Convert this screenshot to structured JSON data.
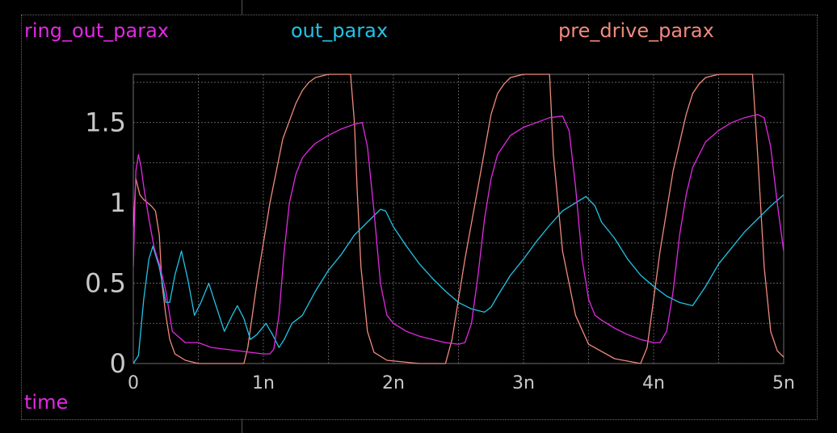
{
  "colors": {
    "background": "#000000",
    "grid": "#6e6e6e",
    "axis_text": "#c8c8c8",
    "ring_out_parax": "#e229e2",
    "out_parax": "#22c3e6",
    "pre_drive_parax": "#f08a7d"
  },
  "chart_data": {
    "type": "line",
    "title": "",
    "xlabel": "time",
    "ylabel": "",
    "xlim": [
      0,
      5
    ],
    "ylim": [
      0,
      1.8
    ],
    "grid": true,
    "legend_placement": "top",
    "x_ticks": [
      0,
      1,
      2,
      3,
      4,
      5
    ],
    "x_tick_labels": [
      "0",
      "1n",
      "2n",
      "3n",
      "4n",
      "5n"
    ],
    "y_ticks": [
      0,
      0.5,
      1,
      1.5
    ],
    "y_tick_labels": [
      "0",
      "0.5",
      "1",
      "1.5"
    ],
    "series": [
      {
        "name": "ring_out_parax",
        "color": "#e229e2",
        "x": [
          0,
          0.02,
          0.04,
          0.06,
          0.08,
          0.12,
          0.16,
          0.2,
          0.25,
          0.3,
          0.4,
          0.5,
          0.6,
          0.7,
          0.8,
          0.9,
          1.0,
          1.05,
          1.08,
          1.12,
          1.16,
          1.2,
          1.25,
          1.3,
          1.35,
          1.4,
          1.5,
          1.6,
          1.7,
          1.76,
          1.8,
          1.85,
          1.9,
          1.95,
          2.0,
          2.1,
          2.2,
          2.3,
          2.4,
          2.5,
          2.55,
          2.6,
          2.65,
          2.7,
          2.75,
          2.8,
          2.9,
          3.0,
          3.1,
          3.2,
          3.3,
          3.35,
          3.4,
          3.45,
          3.5,
          3.55,
          3.6,
          3.7,
          3.8,
          3.9,
          4.0,
          4.05,
          4.1,
          4.15,
          4.2,
          4.25,
          4.3,
          4.4,
          4.5,
          4.6,
          4.7,
          4.8,
          4.85,
          4.9,
          4.95,
          5.0
        ],
        "y": [
          0.6,
          1.2,
          1.3,
          1.22,
          1.1,
          0.9,
          0.72,
          0.62,
          0.45,
          0.2,
          0.13,
          0.13,
          0.1,
          0.09,
          0.08,
          0.07,
          0.06,
          0.06,
          0.09,
          0.3,
          0.7,
          1.0,
          1.18,
          1.28,
          1.33,
          1.37,
          1.42,
          1.46,
          1.49,
          1.5,
          1.35,
          0.95,
          0.5,
          0.3,
          0.25,
          0.2,
          0.17,
          0.15,
          0.13,
          0.12,
          0.13,
          0.25,
          0.55,
          0.9,
          1.15,
          1.3,
          1.42,
          1.47,
          1.5,
          1.53,
          1.54,
          1.45,
          1.1,
          0.65,
          0.4,
          0.3,
          0.27,
          0.22,
          0.18,
          0.15,
          0.13,
          0.13,
          0.2,
          0.45,
          0.8,
          1.05,
          1.22,
          1.38,
          1.45,
          1.5,
          1.53,
          1.55,
          1.53,
          1.35,
          1.0,
          0.7
        ]
      },
      {
        "name": "out_parax",
        "color": "#22c3e6",
        "x": [
          0,
          0.04,
          0.08,
          0.12,
          0.15,
          0.2,
          0.25,
          0.28,
          0.32,
          0.37,
          0.42,
          0.47,
          0.52,
          0.58,
          0.64,
          0.7,
          0.76,
          0.8,
          0.85,
          0.9,
          0.95,
          1.02,
          1.07,
          1.12,
          1.16,
          1.22,
          1.3,
          1.4,
          1.5,
          1.6,
          1.7,
          1.8,
          1.9,
          1.94,
          2.0,
          2.1,
          2.2,
          2.3,
          2.4,
          2.5,
          2.6,
          2.7,
          2.75,
          2.8,
          2.9,
          3.0,
          3.1,
          3.2,
          3.3,
          3.4,
          3.48,
          3.55,
          3.6,
          3.7,
          3.8,
          3.9,
          4.0,
          4.1,
          4.2,
          4.3,
          4.4,
          4.5,
          4.6,
          4.7,
          4.8,
          4.9,
          5.0
        ],
        "y": [
          0.0,
          0.05,
          0.4,
          0.65,
          0.73,
          0.6,
          0.38,
          0.38,
          0.55,
          0.7,
          0.52,
          0.3,
          0.38,
          0.5,
          0.35,
          0.2,
          0.3,
          0.36,
          0.28,
          0.15,
          0.18,
          0.25,
          0.18,
          0.1,
          0.15,
          0.25,
          0.3,
          0.45,
          0.58,
          0.68,
          0.8,
          0.88,
          0.96,
          0.95,
          0.85,
          0.73,
          0.62,
          0.53,
          0.45,
          0.38,
          0.34,
          0.32,
          0.35,
          0.42,
          0.55,
          0.65,
          0.76,
          0.86,
          0.95,
          1.0,
          1.04,
          0.98,
          0.88,
          0.78,
          0.65,
          0.55,
          0.48,
          0.42,
          0.38,
          0.36,
          0.48,
          0.62,
          0.72,
          0.82,
          0.9,
          0.98,
          1.05
        ]
      },
      {
        "name": "pre_drive_parax",
        "color": "#f08a7d",
        "x": [
          0,
          0.02,
          0.05,
          0.08,
          0.11,
          0.14,
          0.17,
          0.2,
          0.22,
          0.25,
          0.28,
          0.32,
          0.4,
          0.5,
          0.7,
          0.85,
          0.88,
          0.95,
          1.05,
          1.15,
          1.25,
          1.3,
          1.35,
          1.4,
          1.5,
          1.6,
          1.67,
          1.7,
          1.72,
          1.75,
          1.8,
          1.85,
          1.95,
          2.2,
          2.4,
          2.45,
          2.55,
          2.65,
          2.75,
          2.8,
          2.85,
          2.9,
          3.0,
          3.1,
          3.15,
          3.2,
          3.23,
          3.3,
          3.4,
          3.5,
          3.7,
          3.9,
          3.95,
          4.05,
          4.15,
          4.25,
          4.3,
          4.35,
          4.4,
          4.5,
          4.6,
          4.7,
          4.76,
          4.8,
          4.85,
          4.9,
          4.95,
          5.0
        ],
        "y": [
          0.85,
          1.15,
          1.05,
          1.02,
          1.0,
          0.98,
          0.95,
          0.8,
          0.5,
          0.3,
          0.15,
          0.06,
          0.02,
          0.0,
          0.0,
          0.0,
          0.1,
          0.5,
          1.0,
          1.4,
          1.62,
          1.7,
          1.75,
          1.78,
          1.8,
          1.8,
          1.8,
          1.5,
          1.1,
          0.6,
          0.2,
          0.07,
          0.02,
          0.0,
          0.0,
          0.15,
          0.65,
          1.1,
          1.55,
          1.68,
          1.74,
          1.78,
          1.8,
          1.8,
          1.8,
          1.8,
          1.3,
          0.7,
          0.3,
          0.12,
          0.03,
          0.0,
          0.1,
          0.7,
          1.2,
          1.55,
          1.68,
          1.74,
          1.78,
          1.8,
          1.8,
          1.8,
          1.8,
          1.3,
          0.6,
          0.2,
          0.08,
          0.04
        ]
      }
    ]
  },
  "legend": {
    "ring_out_parax": "ring_out_parax",
    "out_parax": "out_parax",
    "pre_drive_parax": "pre_drive_parax"
  }
}
